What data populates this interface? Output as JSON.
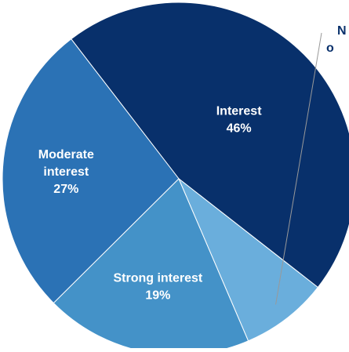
{
  "chart_data": {
    "type": "pie",
    "slices": [
      {
        "label": "Interest",
        "value": 46,
        "display": "46%",
        "color": "#08306b",
        "label_color": "#ffffff",
        "label_lines": [
          "Interest"
        ]
      },
      {
        "label": "Moderate interest",
        "value": 27,
        "display": "27%",
        "color": "#2b72b5",
        "label_color": "#ffffff",
        "label_lines": [
          "Moderate",
          "interest"
        ]
      },
      {
        "label": "Strong interest",
        "value": 19,
        "display": "19%",
        "color": "#4492c8",
        "label_color": "#ffffff",
        "label_lines": [
          "Strong interest"
        ]
      },
      {
        "label": "No interest or no answer",
        "value": 8,
        "display": "",
        "color": "#6aaedc",
        "label_color": "#08306b",
        "label_lines": [
          "N",
          "o"
        ]
      }
    ],
    "start_angle_deg": 38,
    "direction": "counterclockwise",
    "legend": "none",
    "external_label_slice": "No interest or no answer"
  }
}
